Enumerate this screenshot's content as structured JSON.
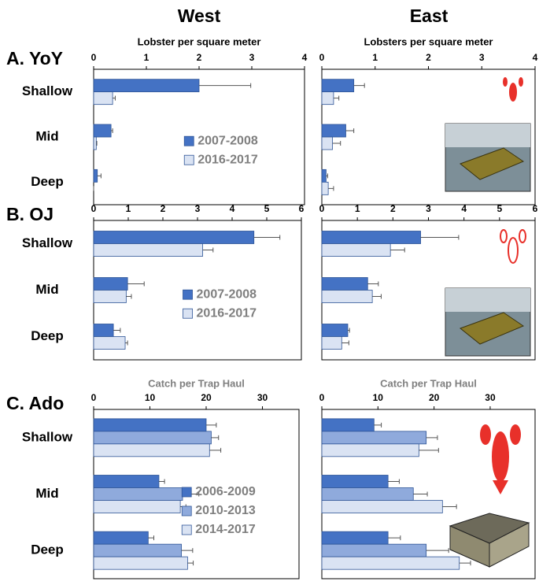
{
  "column_titles": [
    "West",
    "East"
  ],
  "row_labels": [
    "A. YoY",
    "B. OJ",
    "C. Ado"
  ],
  "chart_data": [
    {
      "type": "bar",
      "orientation": "horizontal",
      "xlabel": "Lobster per square meter",
      "xlim": [
        0,
        4
      ],
      "xticks": [
        0,
        1,
        2,
        3,
        4
      ],
      "categories": [
        "Shallow",
        "Mid",
        "Deep"
      ],
      "legend": "center-right",
      "series": [
        {
          "name": "2007-2008",
          "color": "#4472c4",
          "values": [
            2.0,
            0.33,
            0.07
          ],
          "errors": [
            0.98,
            0.03,
            0.07
          ]
        },
        {
          "name": "2016-2017",
          "color": "#dae3f3",
          "values": [
            0.36,
            0.05,
            0
          ],
          "errors": [
            0.05,
            0.01,
            0
          ]
        }
      ]
    },
    {
      "type": "bar",
      "orientation": "horizontal",
      "xlabel": "Lobsters  per square meter",
      "xlim": [
        0,
        4
      ],
      "xticks": [
        0,
        1,
        2,
        3,
        4
      ],
      "series": [
        {
          "color": "#4472c4",
          "values": [
            0.6,
            0.45,
            0.08
          ],
          "errors": [
            0.2,
            0.15,
            0.03
          ]
        },
        {
          "color": "#dae3f3",
          "values": [
            0.22,
            0.2,
            0.12
          ],
          "errors": [
            0.1,
            0.15,
            0.1
          ]
        }
      ]
    },
    {
      "type": "bar",
      "orientation": "horizontal",
      "xlim": [
        0,
        6
      ],
      "xticks": [
        0,
        1,
        2,
        3,
        4,
        5,
        6
      ],
      "categories": [
        "Shallow",
        "Mid",
        "Deep"
      ],
      "legend": "center-right",
      "series": [
        {
          "name": "2007-2008",
          "color": "#4472c4",
          "values": [
            4.63,
            0.98,
            0.57
          ],
          "errors": [
            0.75,
            0.48,
            0.2
          ]
        },
        {
          "name": "2016-2017",
          "color": "#dae3f3",
          "values": [
            3.15,
            0.94,
            0.91
          ],
          "errors": [
            0.3,
            0.15,
            0.07
          ]
        }
      ]
    },
    {
      "type": "bar",
      "orientation": "horizontal",
      "xlim": [
        0,
        6
      ],
      "xticks": [
        0,
        1,
        2,
        3,
        4,
        5,
        6
      ],
      "series": [
        {
          "color": "#4472c4",
          "values": [
            2.78,
            1.29,
            0.73
          ],
          "errors": [
            1.07,
            0.3,
            0.05
          ]
        },
        {
          "color": "#dae3f3",
          "values": [
            1.93,
            1.42,
            0.56
          ],
          "errors": [
            0.4,
            0.25,
            0.2
          ]
        }
      ]
    },
    {
      "type": "bar",
      "orientation": "horizontal",
      "xlabel": "Catch per Trap Haul",
      "xlim": [
        0,
        36.5
      ],
      "xticks": [
        0,
        10,
        20,
        30
      ],
      "categories": [
        "Shallow",
        "Mid",
        "Deep"
      ],
      "legend": "center-right",
      "series": [
        {
          "name": "2006-2009",
          "color": "#4472c4",
          "values": [
            20.0,
            11.6,
            9.7
          ],
          "errors": [
            1.8,
            1.0,
            1.0
          ]
        },
        {
          "name": "2010-2013",
          "color": "#8faadc",
          "values": [
            20.9,
            15.8,
            15.6
          ],
          "errors": [
            1.3,
            2.9,
            2.0
          ]
        },
        {
          "name": "2014-2017",
          "color": "#dae3f3",
          "values": [
            20.6,
            15.4,
            16.7
          ],
          "errors": [
            2.0,
            1.0,
            1.0
          ]
        }
      ]
    },
    {
      "type": "bar",
      "orientation": "horizontal",
      "xlabel": "Catch per Trap Haul",
      "xlim": [
        0,
        38
      ],
      "xticks": [
        0,
        10,
        20,
        30
      ],
      "series": [
        {
          "color": "#4472c4",
          "values": [
            9.3,
            11.8,
            11.8
          ],
          "errors": [
            1.3,
            2.0,
            2.2
          ]
        },
        {
          "color": "#8faadc",
          "values": [
            18.6,
            16.3,
            18.6
          ],
          "errors": [
            2.0,
            2.5,
            4.0
          ]
        },
        {
          "color": "#dae3f3",
          "values": [
            17.3,
            21.5,
            24.5
          ],
          "errors": [
            3.5,
            2.5,
            2.0
          ]
        }
      ]
    }
  ]
}
